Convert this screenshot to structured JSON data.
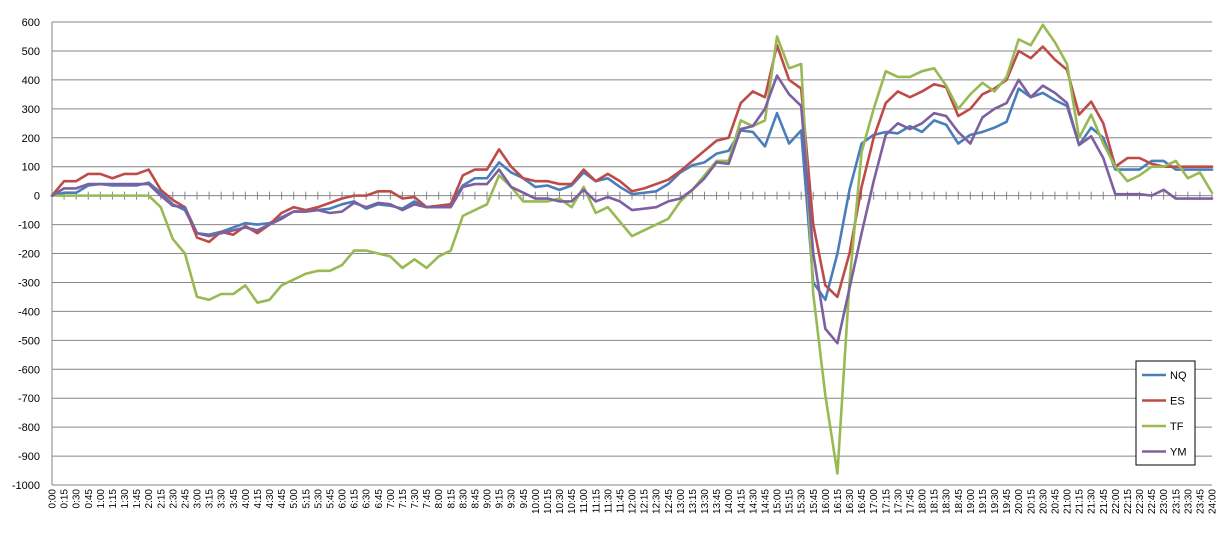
{
  "chart_data": {
    "type": "line",
    "ylim": [
      -1000,
      600
    ],
    "y_ticks": [
      600,
      500,
      400,
      300,
      200,
      100,
      0,
      -100,
      -200,
      -300,
      -400,
      -500,
      -600,
      -700,
      -800,
      -900,
      -1000
    ],
    "x_tick_labels": [
      "0:00",
      "0:15",
      "0:30",
      "0:45",
      "1:00",
      "1:15",
      "1:30",
      "1:45",
      "2:00",
      "2:15",
      "2:30",
      "2:45",
      "3:00",
      "3:15",
      "3:30",
      "3:45",
      "4:00",
      "4:15",
      "4:30",
      "4:45",
      "5:00",
      "5:15",
      "5:30",
      "5:45",
      "6:00",
      "6:15",
      "6:30",
      "6:45",
      "7:00",
      "7:15",
      "7:30",
      "7:45",
      "8:00",
      "8:15",
      "8:30",
      "8:45",
      "9:00",
      "9:15",
      "9:30",
      "9:45",
      "10:00",
      "10:15",
      "10:30",
      "10:45",
      "11:00",
      "11:15",
      "11:30",
      "11:45",
      "12:00",
      "12:15",
      "12:30",
      "12:45",
      "13:00",
      "13:15",
      "13:30",
      "13:45",
      "14:00",
      "14:15",
      "14:30",
      "14:45",
      "15:00",
      "15:15",
      "15:30",
      "15:45",
      "16:00",
      "16:15",
      "16:30",
      "16:45",
      "17:00",
      "17:15",
      "17:30",
      "17:45",
      "18:00",
      "18:15",
      "18:30",
      "18:45",
      "19:00",
      "19:15",
      "19:30",
      "19:45",
      "20:00",
      "20:15",
      "20:30",
      "20:45",
      "21:00",
      "21:15",
      "21:30",
      "21:45",
      "22:00",
      "22:15",
      "22:30",
      "22:45",
      "23:00",
      "23:15",
      "23:30",
      "23:45",
      "24:00"
    ],
    "grid": true,
    "legend": "bottom-right",
    "series": [
      {
        "name": "NQ",
        "color": "#4a7ebb",
        "values": [
          0,
          10,
          10,
          35,
          40,
          35,
          35,
          35,
          45,
          10,
          -30,
          -50,
          -130,
          -135,
          -125,
          -110,
          -95,
          -100,
          -95,
          -75,
          -55,
          -55,
          -50,
          -45,
          -30,
          -20,
          -45,
          -30,
          -35,
          -45,
          -20,
          -40,
          -35,
          -30,
          35,
          60,
          60,
          115,
          80,
          60,
          30,
          35,
          20,
          35,
          80,
          50,
          60,
          30,
          5,
          10,
          15,
          40,
          80,
          105,
          115,
          145,
          155,
          225,
          220,
          170,
          285,
          180,
          225,
          -300,
          -360,
          -200,
          20,
          180,
          210,
          220,
          215,
          240,
          220,
          260,
          245,
          180,
          210,
          220,
          235,
          255,
          370,
          340,
          355,
          330,
          310,
          175,
          235,
          200,
          90,
          90,
          90,
          120,
          120,
          90,
          90,
          90,
          90
        ]
      },
      {
        "name": "ES",
        "color": "#be4b48",
        "values": [
          0,
          50,
          50,
          75,
          75,
          60,
          75,
          75,
          90,
          20,
          -15,
          -40,
          -145,
          -160,
          -125,
          -135,
          -105,
          -130,
          -100,
          -60,
          -40,
          -50,
          -40,
          -25,
          -10,
          0,
          0,
          15,
          15,
          -10,
          -5,
          -40,
          -35,
          -30,
          70,
          90,
          90,
          160,
          100,
          60,
          50,
          50,
          40,
          40,
          90,
          50,
          75,
          50,
          15,
          25,
          40,
          55,
          85,
          120,
          155,
          190,
          200,
          320,
          360,
          340,
          520,
          400,
          370,
          -100,
          -310,
          -350,
          -200,
          30,
          200,
          320,
          360,
          340,
          360,
          385,
          375,
          275,
          300,
          350,
          370,
          400,
          500,
          475,
          515,
          470,
          435,
          280,
          325,
          250,
          100,
          130,
          130,
          110,
          100,
          100,
          100,
          100,
          100
        ]
      },
      {
        "name": "TF",
        "color": "#98b954",
        "values": [
          0,
          0,
          0,
          0,
          0,
          0,
          0,
          0,
          0,
          -40,
          -150,
          -200,
          -350,
          -360,
          -340,
          -340,
          -310,
          -370,
          -360,
          -310,
          -290,
          -270,
          -260,
          -260,
          -240,
          -190,
          -190,
          -200,
          -210,
          -250,
          -220,
          -250,
          -210,
          -190,
          -70,
          -50,
          -30,
          70,
          30,
          -20,
          -20,
          -20,
          -10,
          -40,
          30,
          -60,
          -40,
          -90,
          -140,
          -120,
          -100,
          -80,
          -20,
          20,
          70,
          120,
          120,
          260,
          240,
          260,
          550,
          440,
          455,
          -340,
          -690,
          -960,
          -300,
          150,
          300,
          430,
          410,
          410,
          430,
          440,
          380,
          300,
          350,
          390,
          360,
          410,
          540,
          520,
          590,
          530,
          455,
          200,
          280,
          180,
          100,
          50,
          70,
          100,
          100,
          120,
          60,
          80,
          10
        ]
      },
      {
        "name": "YM",
        "color": "#7d60a0",
        "values": [
          0,
          25,
          25,
          40,
          40,
          40,
          40,
          40,
          40,
          0,
          -35,
          -40,
          -130,
          -140,
          -130,
          -120,
          -110,
          -120,
          -100,
          -80,
          -55,
          -55,
          -50,
          -60,
          -55,
          -25,
          -40,
          -25,
          -30,
          -50,
          -30,
          -40,
          -40,
          -40,
          30,
          40,
          40,
          90,
          30,
          10,
          -10,
          -10,
          -20,
          -20,
          20,
          -20,
          -5,
          -20,
          -50,
          -45,
          -40,
          -20,
          -10,
          20,
          60,
          115,
          110,
          230,
          240,
          300,
          415,
          350,
          310,
          -200,
          -460,
          -510,
          -320,
          -130,
          50,
          210,
          250,
          230,
          250,
          285,
          275,
          220,
          180,
          270,
          300,
          320,
          400,
          340,
          380,
          355,
          320,
          175,
          205,
          130,
          5,
          5,
          5,
          0,
          20,
          -10,
          -10,
          -10,
          -10
        ]
      }
    ]
  }
}
